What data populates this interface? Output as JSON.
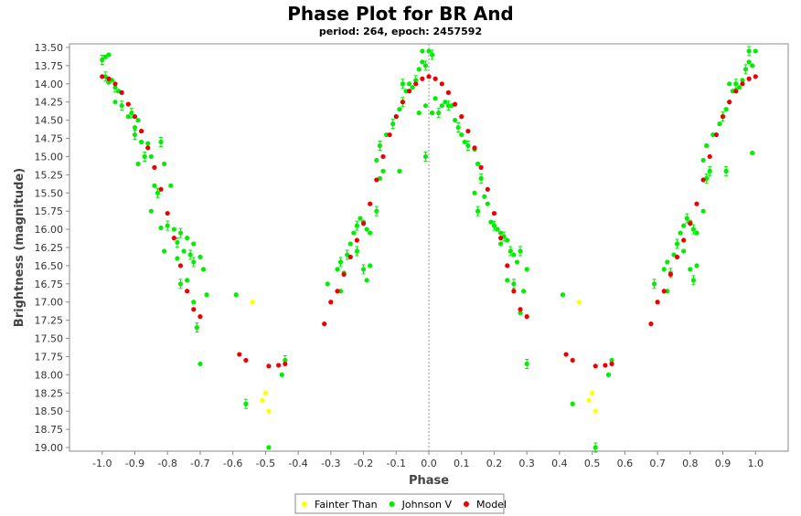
{
  "chart_data": {
    "type": "scatter",
    "title": "Phase Plot for BR And",
    "subtitle": "period: 264, epoch: 2457592",
    "xlabel": "Phase",
    "ylabel": "Brightness (magnitude)",
    "xlim": [
      -1.1,
      1.1
    ],
    "ylim": [
      13.45,
      19.05
    ],
    "y_inverted": true,
    "x_ticks": [
      "-1.0",
      "-0.9",
      "-0.8",
      "-0.7",
      "-0.6",
      "-0.5",
      "-0.4",
      "-0.3",
      "-0.2",
      "-0.1",
      "0.0",
      "0.1",
      "0.2",
      "0.3",
      "0.4",
      "0.5",
      "0.6",
      "0.7",
      "0.8",
      "0.9",
      "1.0"
    ],
    "y_ticks": [
      "13.50",
      "13.75",
      "14.00",
      "14.25",
      "14.50",
      "14.75",
      "15.00",
      "15.25",
      "15.50",
      "15.75",
      "16.00",
      "16.25",
      "16.50",
      "16.75",
      "17.00",
      "17.25",
      "17.50",
      "17.75",
      "18.00",
      "18.25",
      "18.50",
      "18.75",
      "19.00"
    ],
    "zero_line": true,
    "legend_position": "bottom",
    "series": [
      {
        "name": "Fainter Than",
        "color": "#ffff00",
        "points": [
          [
            -0.54,
            17.0
          ],
          [
            -0.5,
            18.25
          ],
          [
            -0.51,
            18.35
          ],
          [
            -0.49,
            18.5
          ],
          [
            0.46,
            17.0
          ],
          [
            0.5,
            18.25
          ],
          [
            0.49,
            18.35
          ],
          [
            0.51,
            18.5
          ]
        ]
      },
      {
        "name": "Johnson V",
        "color": "#00ee00",
        "points": [
          [
            -1.0,
            13.67
          ],
          [
            -0.99,
            13.63
          ],
          [
            -0.98,
            13.6
          ],
          [
            -0.99,
            13.9
          ],
          [
            -0.97,
            13.95
          ],
          [
            -0.98,
            13.98
          ],
          [
            -0.96,
            14.05
          ],
          [
            -0.95,
            14.1
          ],
          [
            -0.96,
            14.25
          ],
          [
            -0.94,
            14.3
          ],
          [
            -0.92,
            14.45
          ],
          [
            -0.9,
            14.6
          ],
          [
            -0.91,
            14.4
          ],
          [
            -0.89,
            14.5
          ],
          [
            -0.88,
            14.65
          ],
          [
            -0.9,
            14.7
          ],
          [
            -0.88,
            14.8
          ],
          [
            -0.86,
            14.82
          ],
          [
            -0.87,
            15.0
          ],
          [
            -0.89,
            15.1
          ],
          [
            -0.85,
            15.0
          ],
          [
            -0.82,
            14.8
          ],
          [
            -0.81,
            15.1
          ],
          [
            -0.84,
            15.4
          ],
          [
            -0.83,
            15.5
          ],
          [
            -0.79,
            15.4
          ],
          [
            -0.85,
            15.75
          ],
          [
            -0.8,
            15.95
          ],
          [
            -0.82,
            15.98
          ],
          [
            -0.78,
            16.0
          ],
          [
            -0.76,
            16.05
          ],
          [
            -0.74,
            16.12
          ],
          [
            -0.72,
            16.2
          ],
          [
            -0.77,
            16.18
          ],
          [
            -0.81,
            16.3
          ],
          [
            -0.75,
            16.3
          ],
          [
            -0.73,
            16.35
          ],
          [
            -0.7,
            16.38
          ],
          [
            -0.77,
            16.4
          ],
          [
            -0.72,
            16.45
          ],
          [
            -0.69,
            16.55
          ],
          [
            -0.74,
            16.7
          ],
          [
            -0.76,
            16.75
          ],
          [
            -0.68,
            16.9
          ],
          [
            -0.72,
            17.0
          ],
          [
            -0.71,
            17.35
          ],
          [
            -0.7,
            17.85
          ],
          [
            -0.59,
            16.9
          ],
          [
            -0.56,
            18.4
          ],
          [
            -0.49,
            19.0
          ],
          [
            -0.45,
            18.0
          ],
          [
            -0.44,
            17.8
          ],
          [
            -0.31,
            16.75
          ],
          [
            -0.28,
            16.55
          ],
          [
            -0.27,
            16.45
          ],
          [
            -0.26,
            16.6
          ],
          [
            -0.27,
            16.85
          ],
          [
            -0.25,
            16.35
          ],
          [
            -0.24,
            16.2
          ],
          [
            -0.23,
            16.05
          ],
          [
            -0.22,
            15.95
          ],
          [
            -0.21,
            15.85
          ],
          [
            -0.2,
            15.9
          ],
          [
            -0.22,
            16.3
          ],
          [
            -0.19,
            16.0
          ],
          [
            -0.18,
            16.05
          ],
          [
            -0.2,
            16.55
          ],
          [
            -0.19,
            16.7
          ],
          [
            -0.18,
            16.5
          ],
          [
            -0.16,
            15.75
          ],
          [
            -0.15,
            15.3
          ],
          [
            -0.16,
            15.05
          ],
          [
            -0.15,
            14.85
          ],
          [
            -0.14,
            15.2
          ],
          [
            -0.13,
            14.7
          ],
          [
            -0.11,
            14.55
          ],
          [
            -0.1,
            14.45
          ],
          [
            -0.09,
            14.35
          ],
          [
            -0.08,
            14.25
          ],
          [
            -0.09,
            15.2
          ],
          [
            -0.07,
            14.1
          ],
          [
            -0.08,
            14.0
          ],
          [
            -0.06,
            14.0
          ],
          [
            -0.05,
            14.05
          ],
          [
            -0.04,
            13.95
          ],
          [
            -0.03,
            13.8
          ],
          [
            -0.02,
            13.7
          ],
          [
            -0.01,
            13.75
          ],
          [
            -0.02,
            13.55
          ],
          [
            0.0,
            13.55
          ],
          [
            0.01,
            13.6
          ],
          [
            -0.01,
            14.3
          ],
          [
            -0.03,
            14.4
          ],
          [
            -0.01,
            15.0
          ],
          [
            0.01,
            14.4
          ],
          [
            0.02,
            14.2
          ],
          [
            0.03,
            14.4
          ],
          [
            0.04,
            14.3
          ],
          [
            0.05,
            14.25
          ],
          [
            0.06,
            14.3
          ],
          [
            0.07,
            14.3
          ],
          [
            0.08,
            14.5
          ],
          [
            0.09,
            14.6
          ],
          [
            0.1,
            14.7
          ],
          [
            0.11,
            14.8
          ],
          [
            0.12,
            14.85
          ],
          [
            0.14,
            14.9
          ],
          [
            0.15,
            15.1
          ],
          [
            0.16,
            15.3
          ],
          [
            0.14,
            15.5
          ],
          [
            0.17,
            15.55
          ],
          [
            0.15,
            15.75
          ],
          [
            0.18,
            15.65
          ],
          [
            0.19,
            15.9
          ],
          [
            0.2,
            15.95
          ],
          [
            0.21,
            16.0
          ],
          [
            0.22,
            16.05
          ],
          [
            0.23,
            16.1
          ],
          [
            0.24,
            16.15
          ],
          [
            0.22,
            16.2
          ],
          [
            0.25,
            16.3
          ],
          [
            0.26,
            16.35
          ],
          [
            0.27,
            16.45
          ],
          [
            0.28,
            16.3
          ],
          [
            0.3,
            16.55
          ],
          [
            0.24,
            16.7
          ],
          [
            0.26,
            16.75
          ],
          [
            0.29,
            16.85
          ],
          [
            0.28,
            17.15
          ],
          [
            0.3,
            17.85
          ],
          [
            0.41,
            16.9
          ],
          [
            0.44,
            18.4
          ],
          [
            0.51,
            19.0
          ],
          [
            0.55,
            18.0
          ],
          [
            0.56,
            17.8
          ],
          [
            0.69,
            16.75
          ],
          [
            0.72,
            16.55
          ],
          [
            0.73,
            16.45
          ],
          [
            0.74,
            16.6
          ],
          [
            0.73,
            16.85
          ],
          [
            0.75,
            16.35
          ],
          [
            0.76,
            16.2
          ],
          [
            0.77,
            16.05
          ],
          [
            0.78,
            15.95
          ],
          [
            0.79,
            15.85
          ],
          [
            0.8,
            15.9
          ],
          [
            0.78,
            16.3
          ],
          [
            0.81,
            16.0
          ],
          [
            0.82,
            16.05
          ],
          [
            0.8,
            16.55
          ],
          [
            0.81,
            16.7
          ],
          [
            0.82,
            16.5
          ],
          [
            0.84,
            15.75
          ],
          [
            0.85,
            15.3
          ],
          [
            0.84,
            15.05
          ],
          [
            0.85,
            14.85
          ],
          [
            0.86,
            15.2
          ],
          [
            0.87,
            14.7
          ],
          [
            0.89,
            14.55
          ],
          [
            0.9,
            14.45
          ],
          [
            0.91,
            14.35
          ],
          [
            0.92,
            14.25
          ],
          [
            0.91,
            15.2
          ],
          [
            0.93,
            14.1
          ],
          [
            0.92,
            14.0
          ],
          [
            0.94,
            14.0
          ],
          [
            0.95,
            14.05
          ],
          [
            0.96,
            13.95
          ],
          [
            0.97,
            13.8
          ],
          [
            0.98,
            13.7
          ],
          [
            0.99,
            13.75
          ],
          [
            0.98,
            13.55
          ],
          [
            1.0,
            13.55
          ],
          [
            0.99,
            14.95
          ]
        ]
      },
      {
        "name": "Model",
        "color": "#ee0000",
        "points": [
          [
            -1.0,
            13.9
          ],
          [
            -0.98,
            13.93
          ],
          [
            -0.96,
            14.0
          ],
          [
            -0.94,
            14.12
          ],
          [
            -0.92,
            14.28
          ],
          [
            -0.9,
            14.45
          ],
          [
            -0.88,
            14.65
          ],
          [
            -0.86,
            14.88
          ],
          [
            -0.84,
            15.15
          ],
          [
            -0.82,
            15.45
          ],
          [
            -0.8,
            15.78
          ],
          [
            -0.78,
            16.12
          ],
          [
            -0.76,
            16.5
          ],
          [
            -0.74,
            16.85
          ],
          [
            -0.72,
            17.1
          ],
          [
            -0.7,
            17.2
          ],
          [
            -0.58,
            17.72
          ],
          [
            -0.56,
            17.8
          ],
          [
            -0.49,
            17.88
          ],
          [
            -0.46,
            17.87
          ],
          [
            -0.44,
            17.85
          ],
          [
            -0.32,
            17.3
          ],
          [
            -0.3,
            17.0
          ],
          [
            -0.28,
            16.85
          ],
          [
            -0.26,
            16.62
          ],
          [
            -0.24,
            16.38
          ],
          [
            -0.22,
            16.15
          ],
          [
            -0.2,
            15.92
          ],
          [
            -0.18,
            15.65
          ],
          [
            -0.16,
            15.32
          ],
          [
            -0.14,
            15.0
          ],
          [
            -0.12,
            14.7
          ],
          [
            -0.1,
            14.45
          ],
          [
            -0.08,
            14.25
          ],
          [
            -0.06,
            14.1
          ],
          [
            -0.04,
            14.0
          ],
          [
            -0.02,
            13.93
          ],
          [
            0.0,
            13.9
          ],
          [
            0.02,
            13.93
          ],
          [
            0.04,
            14.0
          ],
          [
            0.06,
            14.12
          ],
          [
            0.08,
            14.28
          ],
          [
            0.1,
            14.45
          ],
          [
            0.12,
            14.65
          ],
          [
            0.14,
            14.88
          ],
          [
            0.16,
            15.15
          ],
          [
            0.18,
            15.45
          ],
          [
            0.2,
            15.78
          ],
          [
            0.22,
            16.12
          ],
          [
            0.24,
            16.5
          ],
          [
            0.26,
            16.85
          ],
          [
            0.28,
            17.1
          ],
          [
            0.3,
            17.2
          ],
          [
            0.42,
            17.72
          ],
          [
            0.44,
            17.8
          ],
          [
            0.51,
            17.88
          ],
          [
            0.54,
            17.87
          ],
          [
            0.56,
            17.85
          ],
          [
            0.68,
            17.3
          ],
          [
            0.7,
            17.0
          ],
          [
            0.72,
            16.85
          ],
          [
            0.74,
            16.62
          ],
          [
            0.76,
            16.38
          ],
          [
            0.78,
            16.15
          ],
          [
            0.8,
            15.92
          ],
          [
            0.82,
            15.65
          ],
          [
            0.84,
            15.32
          ],
          [
            0.86,
            15.0
          ],
          [
            0.88,
            14.7
          ],
          [
            0.9,
            14.45
          ],
          [
            0.92,
            14.25
          ],
          [
            0.94,
            14.1
          ],
          [
            0.96,
            14.0
          ],
          [
            0.98,
            13.93
          ],
          [
            1.0,
            13.9
          ]
        ]
      }
    ]
  }
}
